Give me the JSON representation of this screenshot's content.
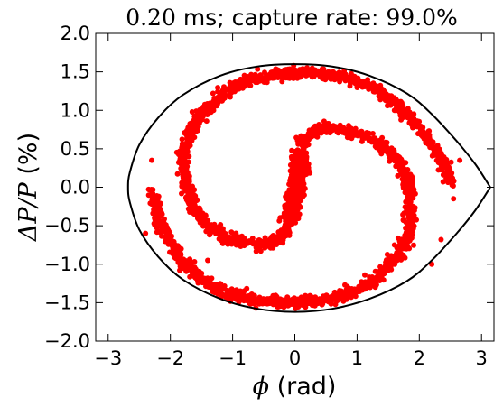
{
  "chart_data": {
    "type": "scatter",
    "title": {
      "time_value": "0.20",
      "time_unit_text": " ms; capture rate: ",
      "rate_value": "99.0",
      "rate_suffix": "%"
    },
    "xlabel": {
      "symbol": "ϕ",
      "unit": " (rad)"
    },
    "ylabel": {
      "symbol": "ΔP/P",
      "unit": " (%)"
    },
    "xlim": [
      -3.2,
      3.2
    ],
    "ylim": [
      -2.0,
      2.0
    ],
    "x_ticks": [
      -3,
      -2,
      -1,
      0,
      1,
      2,
      3
    ],
    "x_tick_labels": [
      "−3",
      "−2",
      "−1",
      "0",
      "1",
      "2",
      "3"
    ],
    "y_ticks": [
      -2.0,
      -1.5,
      -1.0,
      -0.5,
      0.0,
      0.5,
      1.0,
      1.5,
      2.0
    ],
    "y_tick_labels": [
      "−2.0",
      "−1.5",
      "−1.0",
      "−0.5",
      "0.0",
      "0.5",
      "1.0",
      "1.5",
      "2.0"
    ],
    "grid": false,
    "separatrix": {
      "color": "#000000",
      "points": [
        [
          3.14,
          0.0
        ],
        [
          2.9,
          0.3
        ],
        [
          2.6,
          0.6
        ],
        [
          2.2,
          0.95
        ],
        [
          1.8,
          1.22
        ],
        [
          1.2,
          1.45
        ],
        [
          0.6,
          1.57
        ],
        [
          0.0,
          1.6
        ],
        [
          -0.6,
          1.57
        ],
        [
          -1.2,
          1.45
        ],
        [
          -1.8,
          1.2
        ],
        [
          -2.2,
          0.9
        ],
        [
          -2.5,
          0.55
        ],
        [
          -2.65,
          0.2
        ],
        [
          -2.68,
          0.0
        ],
        [
          -2.65,
          -0.2
        ],
        [
          -2.5,
          -0.55
        ],
        [
          -2.2,
          -0.9
        ],
        [
          -1.8,
          -1.2
        ],
        [
          -1.2,
          -1.45
        ],
        [
          -0.6,
          -1.58
        ],
        [
          0.0,
          -1.62
        ],
        [
          0.6,
          -1.58
        ],
        [
          1.2,
          -1.45
        ],
        [
          1.8,
          -1.22
        ],
        [
          2.2,
          -0.95
        ],
        [
          2.6,
          -0.6
        ],
        [
          2.9,
          -0.3
        ],
        [
          3.14,
          0.0
        ]
      ]
    },
    "particles": {
      "color": "#ff0000",
      "arm_1": [
        [
          0.1,
          0.55
        ],
        [
          0.25,
          0.7
        ],
        [
          0.5,
          0.78
        ],
        [
          0.8,
          0.75
        ],
        [
          1.1,
          0.68
        ],
        [
          1.4,
          0.55
        ],
        [
          1.6,
          0.4
        ],
        [
          1.75,
          0.2
        ],
        [
          1.82,
          0.0
        ],
        [
          1.85,
          -0.2
        ],
        [
          1.85,
          -0.45
        ],
        [
          1.8,
          -0.7
        ],
        [
          1.6,
          -0.95
        ],
        [
          1.3,
          -1.2
        ],
        [
          0.9,
          -1.38
        ],
        [
          0.4,
          -1.48
        ],
        [
          -0.1,
          -1.5
        ],
        [
          -0.6,
          -1.47
        ],
        [
          -1.1,
          -1.37
        ],
        [
          -1.5,
          -1.2
        ],
        [
          -1.85,
          -0.95
        ],
        [
          -2.05,
          -0.65
        ],
        [
          -2.2,
          -0.35
        ],
        [
          -2.3,
          -0.05
        ]
      ],
      "arm_2": [
        [
          -0.1,
          -0.55
        ],
        [
          -0.25,
          -0.68
        ],
        [
          -0.5,
          -0.75
        ],
        [
          -0.8,
          -0.72
        ],
        [
          -1.1,
          -0.65
        ],
        [
          -1.4,
          -0.5
        ],
        [
          -1.6,
          -0.3
        ],
        [
          -1.72,
          -0.05
        ],
        [
          -1.78,
          0.2
        ],
        [
          -1.78,
          0.45
        ],
        [
          -1.7,
          0.7
        ],
        [
          -1.5,
          0.95
        ],
        [
          -1.2,
          1.2
        ],
        [
          -0.8,
          1.38
        ],
        [
          -0.3,
          1.47
        ],
        [
          0.2,
          1.5
        ],
        [
          0.7,
          1.45
        ],
        [
          1.2,
          1.32
        ],
        [
          1.6,
          1.1
        ],
        [
          1.95,
          0.82
        ],
        [
          2.2,
          0.55
        ],
        [
          2.4,
          0.3
        ],
        [
          2.52,
          0.05
        ]
      ],
      "core": [
        [
          -0.1,
          -0.45
        ],
        [
          -0.05,
          -0.3
        ],
        [
          0.0,
          -0.15
        ],
        [
          0.02,
          0.0
        ],
        [
          0.05,
          0.15
        ],
        [
          0.08,
          0.3
        ],
        [
          0.1,
          0.45
        ]
      ],
      "outliers": [
        [
          -2.3,
          0.35
        ],
        [
          -1.65,
          0.98
        ],
        [
          2.35,
          -0.68
        ],
        [
          2.55,
          -0.15
        ],
        [
          2.2,
          -1.0
        ],
        [
          1.6,
          -0.75
        ],
        [
          -1.4,
          -0.95
        ],
        [
          2.65,
          0.35
        ],
        [
          -2.4,
          -0.6
        ]
      ]
    }
  }
}
